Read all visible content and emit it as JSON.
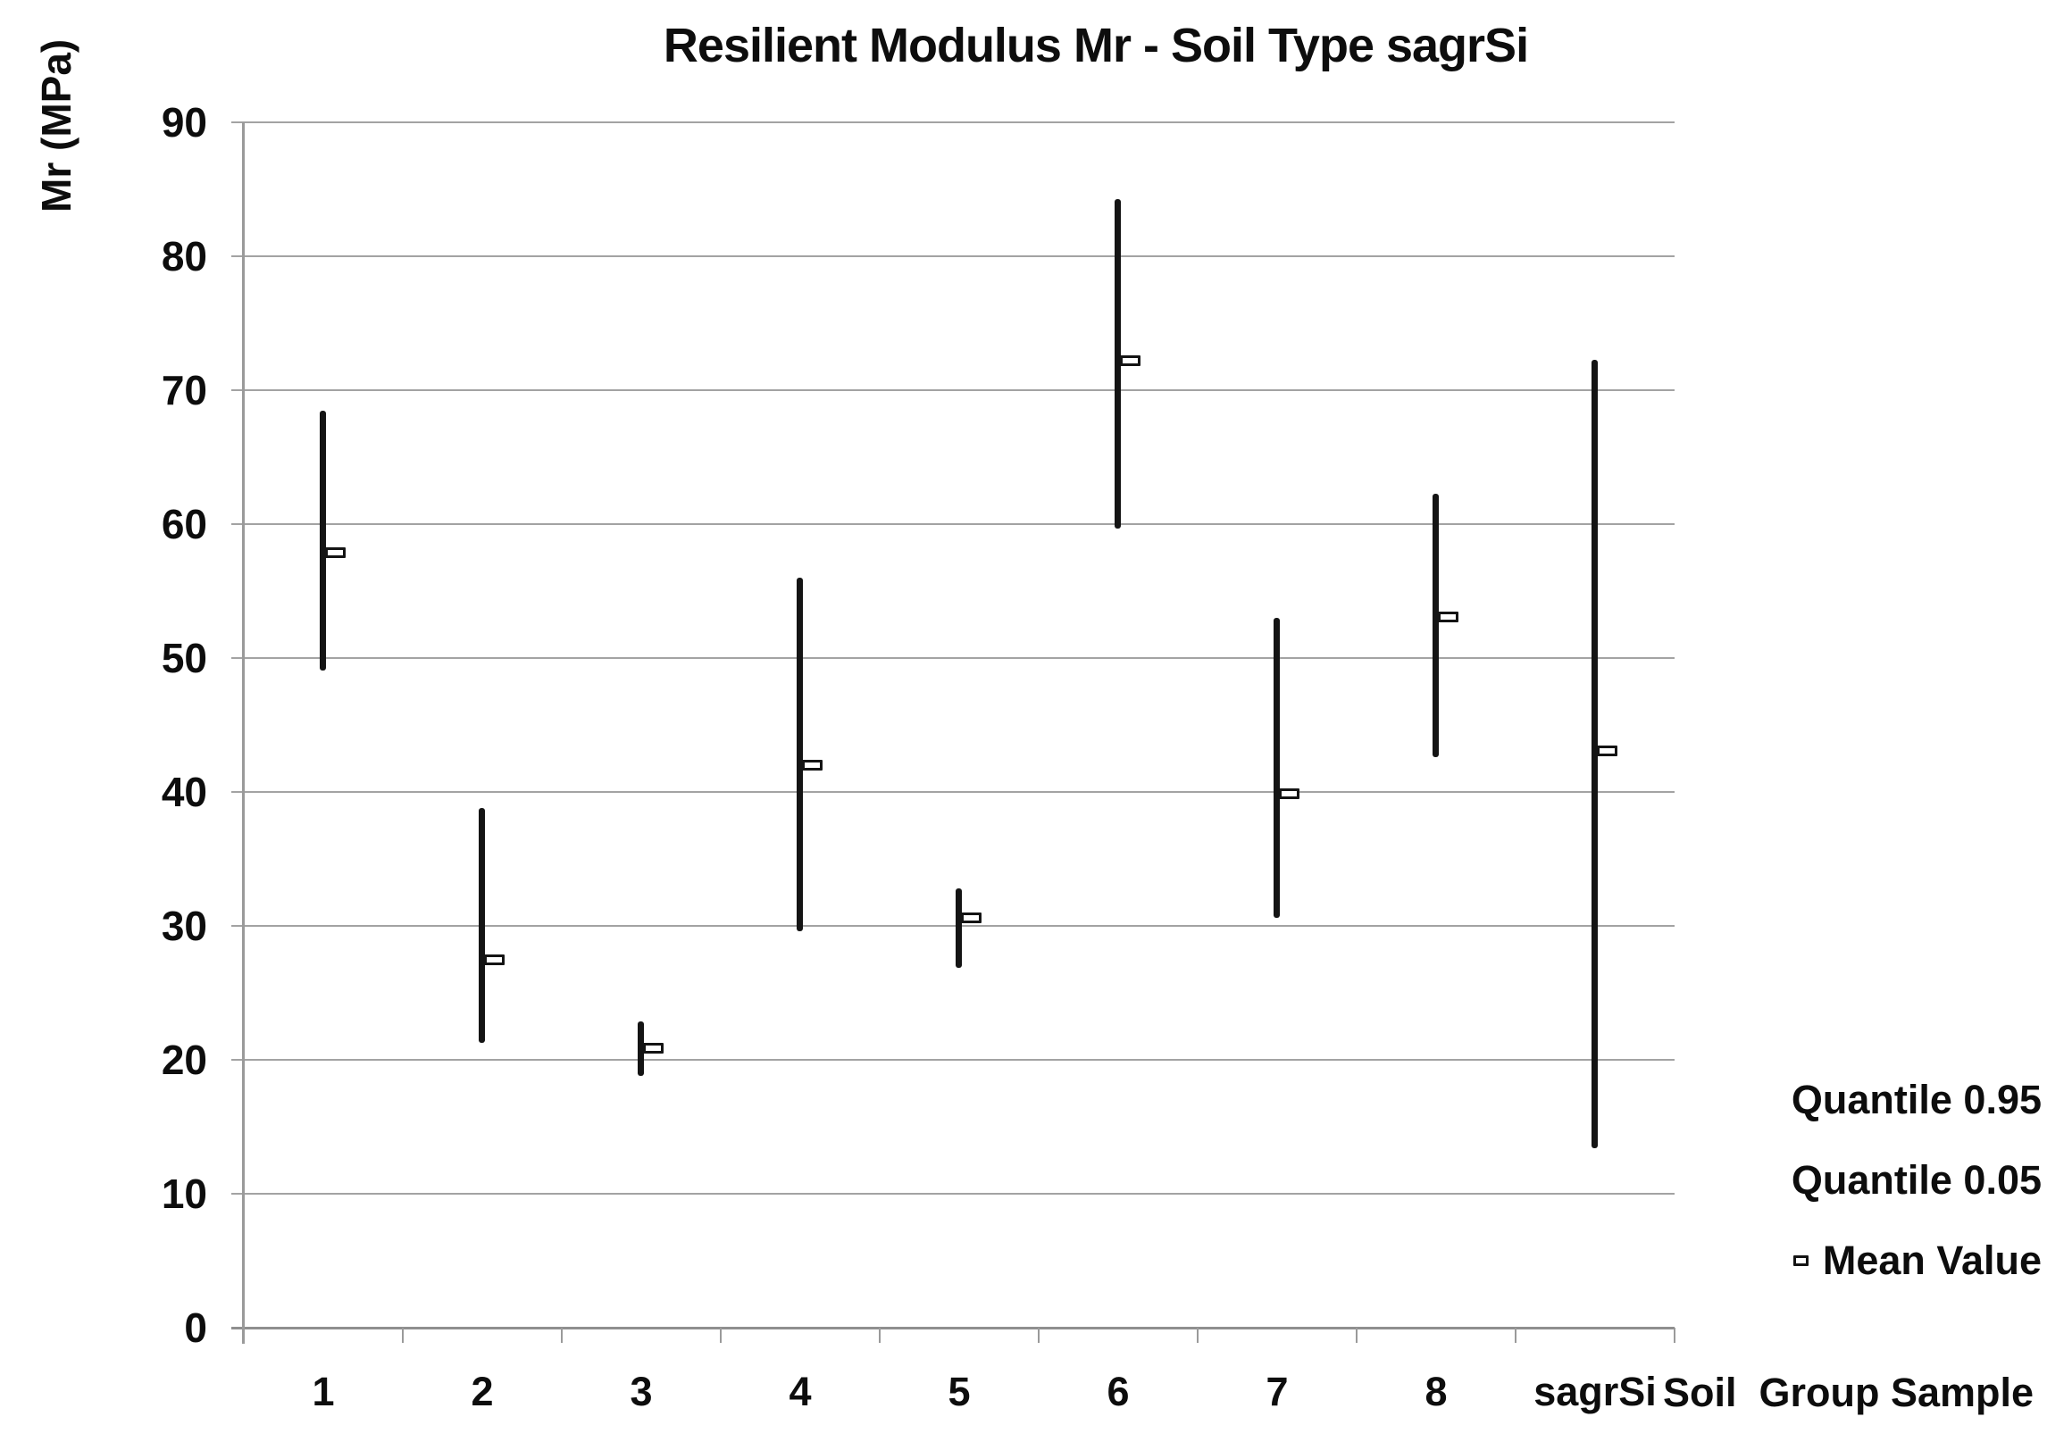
{
  "title": "Resilient Modulus Mr - Soil Type sagrSi",
  "y_axis": {
    "title": "Mr (MPa)",
    "tick_labels": [
      "0",
      "10",
      "20",
      "30",
      "40",
      "50",
      "60",
      "70",
      "80",
      "90"
    ]
  },
  "x_axis": {
    "title": "Soil  Group Sample",
    "category_labels": [
      "1",
      "2",
      "3",
      "4",
      "5",
      "6",
      "7",
      "8",
      "sagrSi"
    ]
  },
  "legend": {
    "items": [
      {
        "label": "Quantile 0.95",
        "marker": "none"
      },
      {
        "label": "Quantile 0.05",
        "marker": "none"
      },
      {
        "label": "Mean Value",
        "marker": "hollow-square"
      }
    ]
  },
  "colors": {
    "bar": "#141414",
    "grid": "#a3a3a3",
    "axis": "#8f8f8f",
    "text": "#0d0d0d",
    "marker_fill": "#ffffff",
    "background": "#ffffff"
  },
  "chart_data": {
    "type": "bar",
    "variant": "high-low-range-with-mean-marker",
    "title": "Resilient Modulus Mr - Soil Type sagrSi",
    "xlabel": "Soil  Group Sample",
    "ylabel": "Mr (MPa)",
    "ylim": [
      0,
      90
    ],
    "ytick_interval": 10,
    "grid": true,
    "legend_position": "right-bottom",
    "categories": [
      "1",
      "2",
      "3",
      "4",
      "5",
      "6",
      "7",
      "8",
      "sagrSi"
    ],
    "series": [
      {
        "name": "Quantile 0.95",
        "values": [
          68.5,
          38.8,
          22.9,
          56.0,
          32.8,
          84.3,
          53.0,
          62.3,
          72.3
        ]
      },
      {
        "name": "Quantile 0.05",
        "values": [
          49.1,
          21.3,
          18.8,
          29.6,
          26.9,
          59.7,
          30.6,
          42.6,
          13.4
        ]
      },
      {
        "name": "Mean Value",
        "values": [
          57.9,
          27.5,
          20.9,
          42.0,
          30.6,
          72.2,
          39.9,
          53.1,
          43.1
        ]
      }
    ]
  }
}
